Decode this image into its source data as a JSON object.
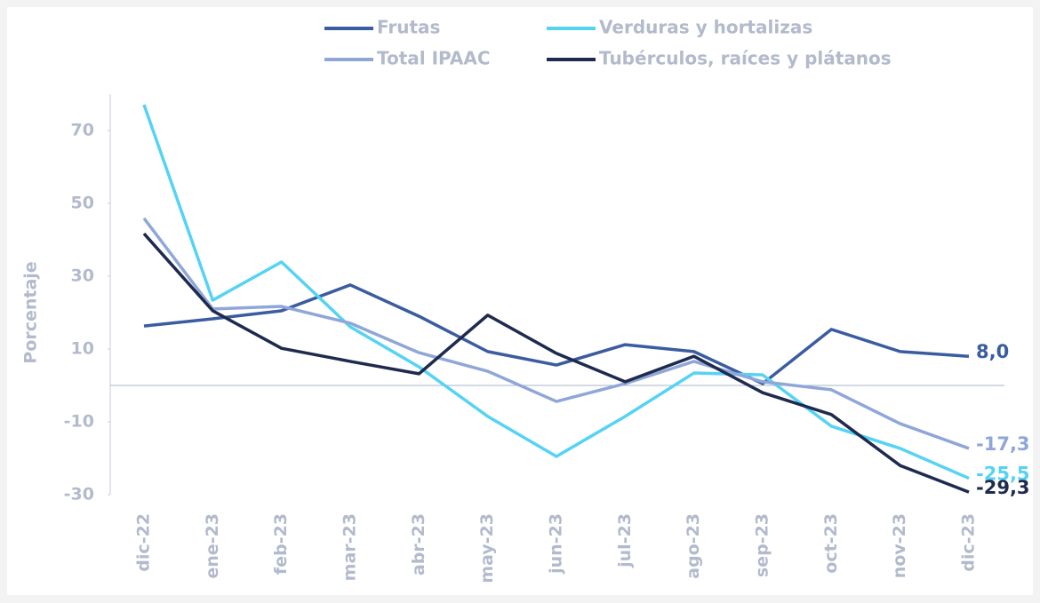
{
  "chart_data": {
    "type": "line",
    "y_label": "Porcentaje",
    "categories": [
      "dic-22",
      "ene-23",
      "feb-23",
      "mar-23",
      "abr-23",
      "may-23",
      "jun-23",
      "jul-23",
      "ago-23",
      "sep-23",
      "oct-23",
      "nov-23",
      "dic-23"
    ],
    "series": [
      {
        "name": "Frutas",
        "color": "#3a5ca0",
        "values": [
          16.3,
          18.3,
          20.5,
          27.6,
          19.0,
          9.3,
          5.6,
          11.2,
          9.3,
          0.5,
          15.4,
          9.3,
          8.0
        ],
        "value_labels": [
          null,
          null,
          null,
          null,
          null,
          null,
          null,
          null,
          null,
          null,
          null,
          null,
          "8,0"
        ]
      },
      {
        "name": "Verduras y hortalizas",
        "color": "#55d3f5",
        "values": [
          77.1,
          23.4,
          33.9,
          16.1,
          5.1,
          -8.5,
          -19.5,
          -8.5,
          3.4,
          2.9,
          -11.2,
          -17.3,
          -25.5
        ],
        "value_labels": [
          null,
          null,
          null,
          null,
          null,
          null,
          null,
          null,
          null,
          null,
          null,
          null,
          "-25,5"
        ]
      },
      {
        "name": "Total IPAAC",
        "color": "#8fa7d8",
        "values": [
          45.9,
          21.0,
          21.7,
          17.1,
          9.0,
          3.9,
          -4.4,
          0.5,
          6.6,
          1.0,
          -1.2,
          -10.5,
          -17.3
        ],
        "value_labels": [
          null,
          null,
          null,
          null,
          null,
          null,
          null,
          null,
          null,
          null,
          null,
          null,
          "-17,3"
        ]
      },
      {
        "name": "Tubérculos, raíces y plátanos",
        "color": "#1e2a4e",
        "values": [
          41.7,
          20.5,
          10.2,
          6.6,
          3.2,
          19.3,
          8.8,
          1.0,
          8.0,
          -2.0,
          -8.0,
          -22.0,
          -29.3
        ],
        "value_labels": [
          null,
          null,
          null,
          null,
          null,
          null,
          null,
          null,
          null,
          null,
          null,
          null,
          "-29,3"
        ]
      }
    ],
    "ylim": [
      -30,
      80
    ],
    "yticks": [
      70,
      50,
      30,
      10,
      -10,
      -30
    ],
    "grid": false,
    "legend": "top"
  }
}
